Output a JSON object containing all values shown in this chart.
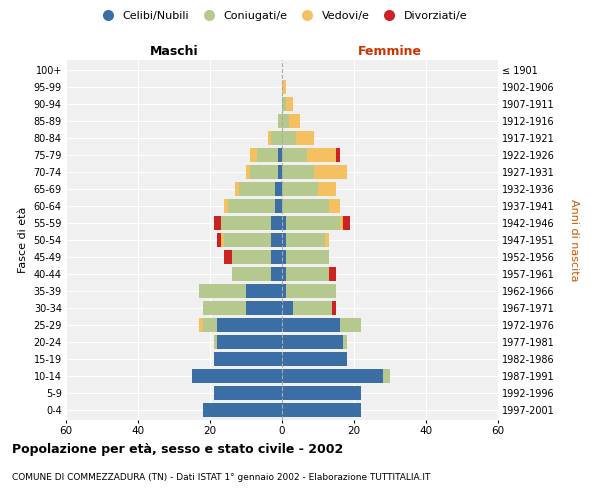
{
  "age_groups": [
    "0-4",
    "5-9",
    "10-14",
    "15-19",
    "20-24",
    "25-29",
    "30-34",
    "35-39",
    "40-44",
    "45-49",
    "50-54",
    "55-59",
    "60-64",
    "65-69",
    "70-74",
    "75-79",
    "80-84",
    "85-89",
    "90-94",
    "95-99",
    "100+"
  ],
  "birth_years": [
    "1997-2001",
    "1992-1996",
    "1987-1991",
    "1982-1986",
    "1977-1981",
    "1972-1976",
    "1967-1971",
    "1962-1966",
    "1957-1961",
    "1952-1956",
    "1947-1951",
    "1942-1946",
    "1937-1941",
    "1932-1936",
    "1927-1931",
    "1922-1926",
    "1917-1921",
    "1912-1916",
    "1907-1911",
    "1902-1906",
    "≤ 1901"
  ],
  "maschi": {
    "celibi": [
      22,
      19,
      25,
      19,
      18,
      18,
      10,
      10,
      3,
      3,
      3,
      3,
      2,
      2,
      1,
      1,
      0,
      0,
      0,
      0,
      0
    ],
    "coniugati": [
      0,
      0,
      0,
      0,
      1,
      4,
      12,
      13,
      11,
      11,
      13,
      14,
      13,
      10,
      8,
      6,
      3,
      1,
      0,
      0,
      0
    ],
    "vedovi": [
      0,
      0,
      0,
      0,
      0,
      1,
      0,
      0,
      0,
      0,
      1,
      0,
      1,
      1,
      1,
      2,
      1,
      0,
      0,
      0,
      0
    ],
    "divorziati": [
      0,
      0,
      0,
      0,
      0,
      0,
      0,
      0,
      0,
      2,
      1,
      2,
      0,
      0,
      0,
      0,
      0,
      0,
      0,
      0,
      0
    ]
  },
  "femmine": {
    "nubili": [
      22,
      22,
      28,
      18,
      17,
      16,
      3,
      1,
      1,
      1,
      1,
      1,
      0,
      0,
      0,
      0,
      0,
      0,
      0,
      0,
      0
    ],
    "coniugate": [
      0,
      0,
      2,
      0,
      1,
      6,
      11,
      14,
      12,
      12,
      11,
      15,
      13,
      10,
      9,
      7,
      4,
      2,
      1,
      0,
      0
    ],
    "vedove": [
      0,
      0,
      0,
      0,
      0,
      0,
      0,
      0,
      0,
      0,
      1,
      1,
      3,
      5,
      9,
      8,
      5,
      3,
      2,
      1,
      0
    ],
    "divorziate": [
      0,
      0,
      0,
      0,
      0,
      0,
      1,
      0,
      2,
      0,
      0,
      2,
      0,
      0,
      0,
      1,
      0,
      0,
      0,
      0,
      0
    ]
  },
  "colors": {
    "celibi": "#3a6ea5",
    "coniugati": "#b5c98e",
    "vedovi": "#f5c060",
    "divorziati": "#cc2222"
  },
  "xlim": 60,
  "title": "Popolazione per età, sesso e stato civile - 2002",
  "subtitle": "COMUNE DI COMMEZZADURA (TN) - Dati ISTAT 1° gennaio 2002 - Elaborazione TUTTITALIA.IT",
  "ylabel_left": "Fasce di età",
  "ylabel_right": "Anni di nascita",
  "xlabel_left": "Maschi",
  "xlabel_right": "Femmine"
}
